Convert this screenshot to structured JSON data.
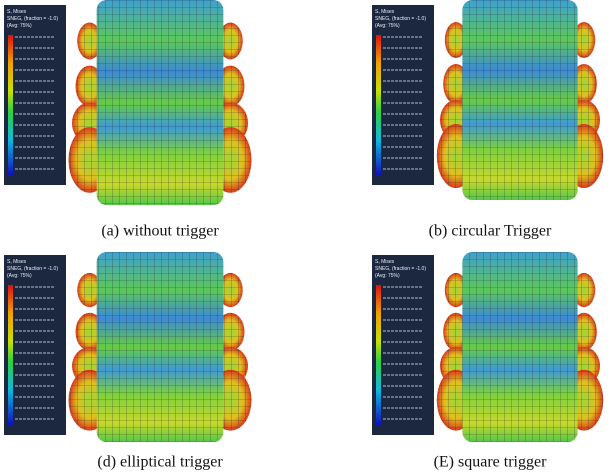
{
  "panels": [
    {
      "caption": "(a) without trigger",
      "legend": [
        "S, Mises",
        "SNEG, (fraction = -1.0)",
        "(Avg: 75%)"
      ]
    },
    {
      "caption": "(b) circular Trigger",
      "legend": [
        "S, Mises",
        "SNEG, (fraction = -1.0)",
        "(Avg: 75%)"
      ]
    },
    {
      "caption": "(d) elliptical trigger",
      "legend": [
        "S, Mises",
        "SNEG, (fraction = -1.0)",
        "(Avg: 75%)"
      ]
    },
    {
      "caption": "(E) square trigger",
      "legend": [
        "S, Mises",
        "SNEG, (fraction = -1.0)",
        "(Avg: 75%)"
      ]
    }
  ]
}
